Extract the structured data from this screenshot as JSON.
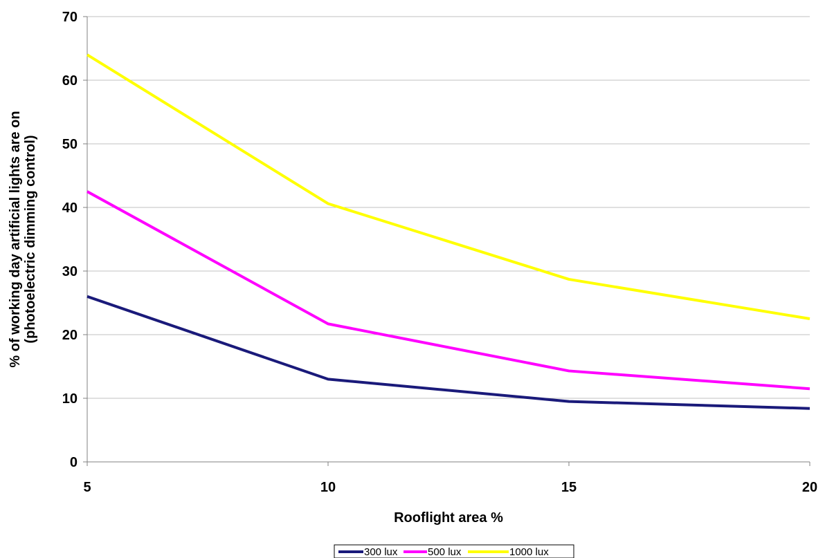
{
  "chart_data": {
    "type": "line",
    "title": "",
    "xlabel": "Rooflight area %",
    "ylabel": "% of working day artificial lights are on (photoelectric dimming control)",
    "ylabel_lines": [
      "% of working day artificial lights are on",
      "(photoelectric dimming control)"
    ],
    "x": [
      5,
      10,
      15,
      20
    ],
    "x_ticks": [
      "5",
      "10",
      "15",
      "20"
    ],
    "xlim": [
      5,
      20
    ],
    "ylim": [
      0,
      70
    ],
    "y_ticks": [
      "0",
      "10",
      "20",
      "30",
      "40",
      "50",
      "60",
      "70"
    ],
    "grid": "horizontal",
    "legend_position": "bottom",
    "series": [
      {
        "name": "300 lux",
        "color": "#1a1a7a",
        "values": [
          26,
          13,
          9.5,
          8.4
        ]
      },
      {
        "name": "500 lux",
        "color": "#ff00ff",
        "values": [
          42.5,
          21.7,
          14.3,
          11.5
        ]
      },
      {
        "name": "1000 lux",
        "color": "#ffff00",
        "values": [
          64,
          40.6,
          28.7,
          22.5
        ]
      }
    ]
  }
}
